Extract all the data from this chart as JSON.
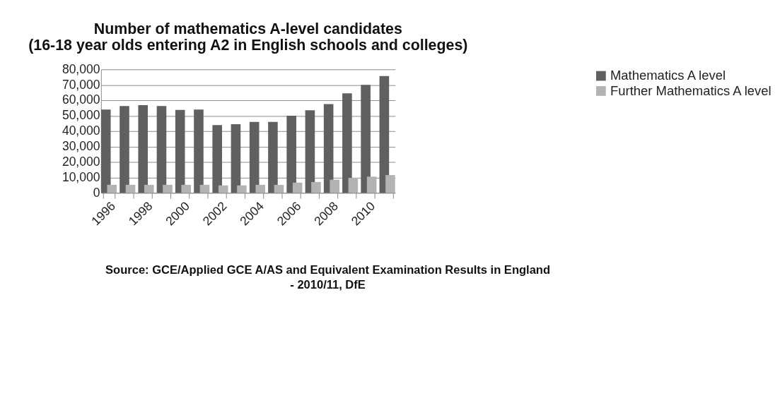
{
  "chart_data": {
    "type": "bar",
    "title": [
      "Number of mathematics A-level candidates",
      "(16-18 year olds entering A2 in English schools and colleges)"
    ],
    "categories": [
      "1996",
      null,
      "1998",
      null,
      "2000",
      null,
      "2002",
      null,
      "2004",
      null,
      "2006",
      null,
      "2008",
      null,
      "2010",
      null
    ],
    "series": [
      {
        "name": "Mathematics A level",
        "color": "#606060",
        "values": [
          54000,
          56200,
          56800,
          56200,
          53700,
          54000,
          43900,
          44500,
          46000,
          46000,
          50000,
          53500,
          57500,
          64500,
          70000,
          75700
        ]
      },
      {
        "name": "Further Mathematics A level",
        "color": "#b3b3b3",
        "values": [
          5200,
          5200,
          5200,
          5200,
          5200,
          5200,
          4800,
          4800,
          5200,
          5200,
          6600,
          7000,
          8500,
          9700,
          10500,
          11500
        ]
      }
    ],
    "ylim": [
      0,
      80000
    ],
    "yticks": [
      {
        "value": 0,
        "label": "0"
      },
      {
        "value": 10000,
        "label": "10,000"
      },
      {
        "value": 20000,
        "label": "20,000"
      },
      {
        "value": 30000,
        "label": "30,000"
      },
      {
        "value": 40000,
        "label": "40,000"
      },
      {
        "value": 50000,
        "label": "50,000"
      },
      {
        "value": 60000,
        "label": "60,000"
      },
      {
        "value": 70000,
        "label": "70,000"
      },
      {
        "value": 80000,
        "label": "80,000"
      }
    ],
    "grid": "y",
    "legend": "right",
    "annotations": [
      "Source: GCE/Applied GCE A/AS and Equivalent Examination Results in England",
      "- 2010/11, DfE"
    ]
  }
}
